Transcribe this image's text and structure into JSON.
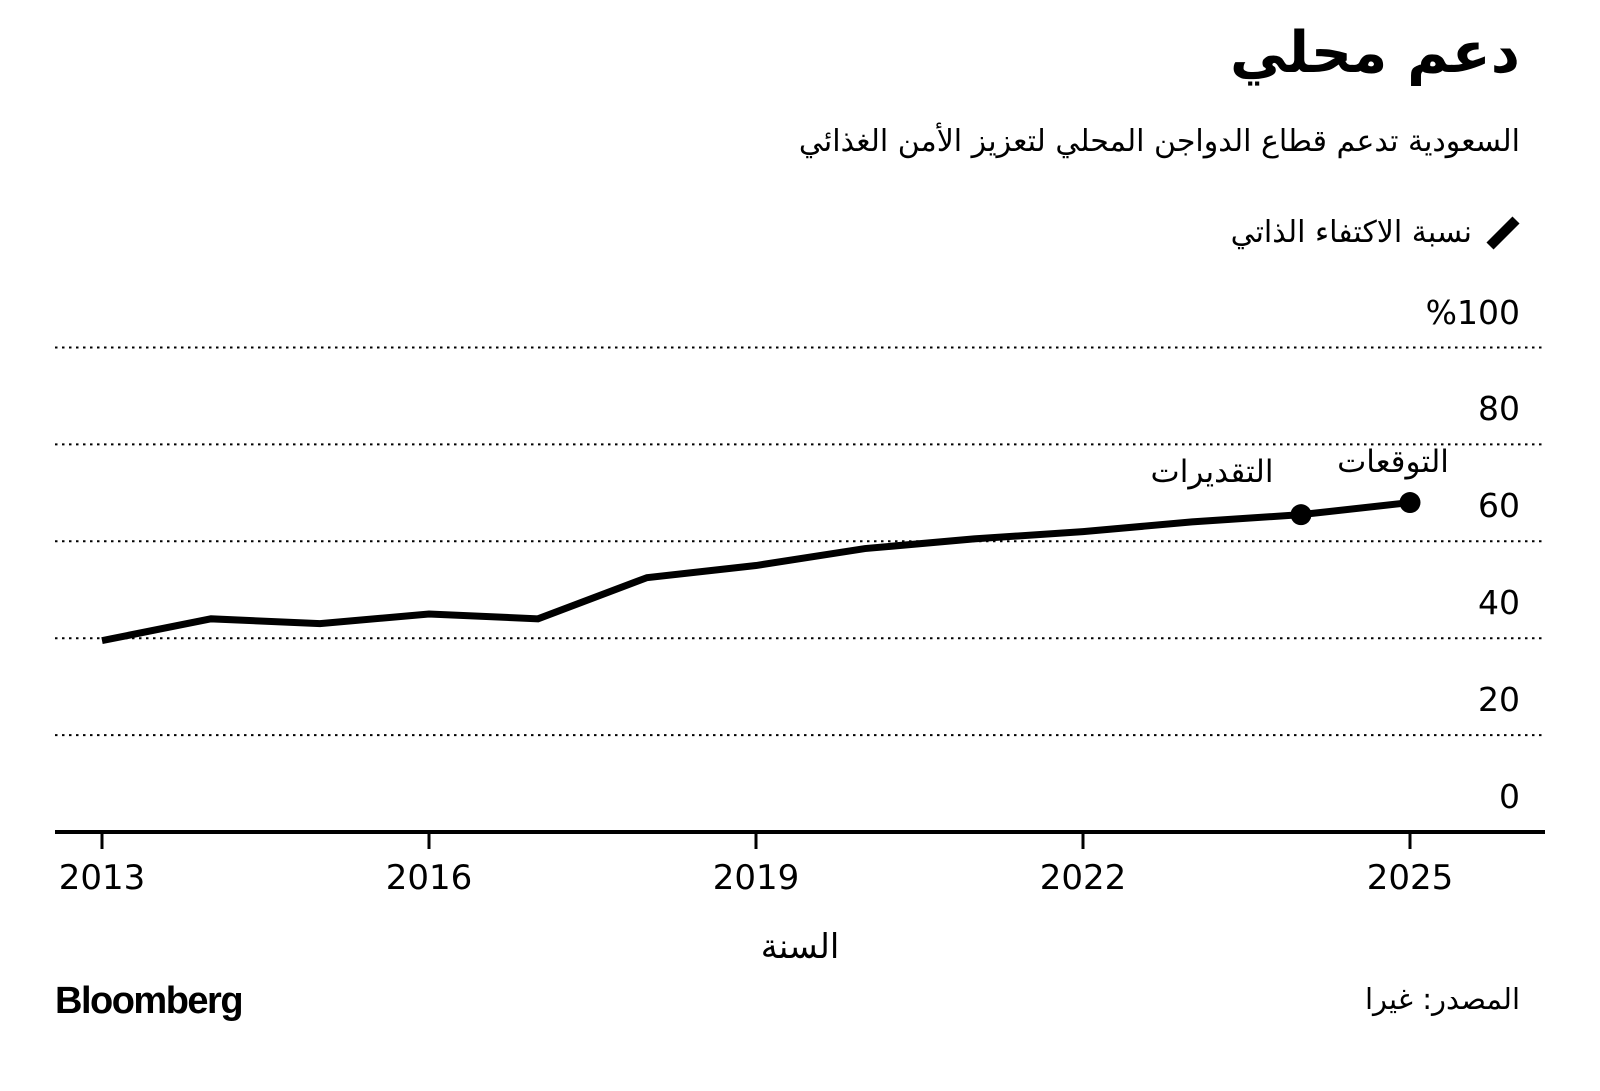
{
  "header": {
    "title": "دعم محلي",
    "subtitle": "السعودية تدعم قطاع الدواجن المحلي لتعزيز الأمن الغذائي"
  },
  "legend": {
    "series_label": "نسبة الاكتفاء الذاتي",
    "marker_color": "#000000"
  },
  "footer": {
    "brand": "Bloomberg",
    "source": "المصدر: غيرا"
  },
  "chart_data": {
    "type": "line",
    "title": "دعم محلي",
    "subtitle": "السعودية تدعم قطاع الدواجن المحلي لتعزيز الأمن الغذائي",
    "series": [
      {
        "name": "نسبة الاكتفاء الذاتي",
        "x": [
          2013,
          2014,
          2015,
          2016,
          2017,
          2018,
          2019,
          2020,
          2021,
          2022,
          2023,
          2024,
          2025
        ],
        "values": [
          39.5,
          44,
          43,
          45,
          44,
          52.5,
          55,
          58.5,
          60.5,
          62,
          64,
          65.5,
          68
        ]
      }
    ],
    "marked_points": [
      2024,
      2025
    ],
    "annotations": [
      {
        "label": "التقديرات",
        "year": 2024
      },
      {
        "label": "التوقعات",
        "year": 2025
      }
    ],
    "xlabel": "السنة",
    "ylim": [
      0,
      100
    ],
    "yticks": [
      0,
      20,
      40,
      60,
      80,
      100
    ],
    "ytick_labels": [
      "0",
      "20",
      "40",
      "60",
      "80",
      "%100"
    ],
    "xticks": [
      2013,
      2016,
      2019,
      2022,
      2025
    ],
    "unit": "%",
    "grid": "horizontal-dotted",
    "legend_position": "top-right",
    "line_color": "#000000",
    "background": "#ffffff"
  }
}
